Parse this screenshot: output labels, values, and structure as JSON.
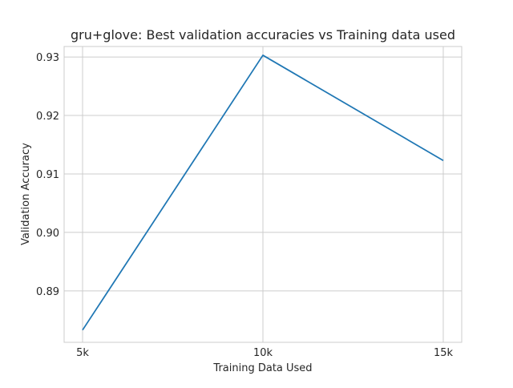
{
  "chart_data": {
    "type": "line",
    "title": "gru+glove: Best validation accuracies vs Training data used",
    "xlabel": "Training Data Used",
    "ylabel": "Validation Accuracy",
    "categories": [
      "5k",
      "10k",
      "15k"
    ],
    "series": [
      {
        "values": [
          0.8833,
          0.9303,
          0.9123
        ],
        "color": "#1f77b4"
      }
    ],
    "yticks": [
      "0.89",
      "0.90",
      "0.91",
      "0.92",
      "0.93"
    ],
    "ylim": [
      0.8812,
      0.9318
    ],
    "grid": true,
    "legend": false
  }
}
